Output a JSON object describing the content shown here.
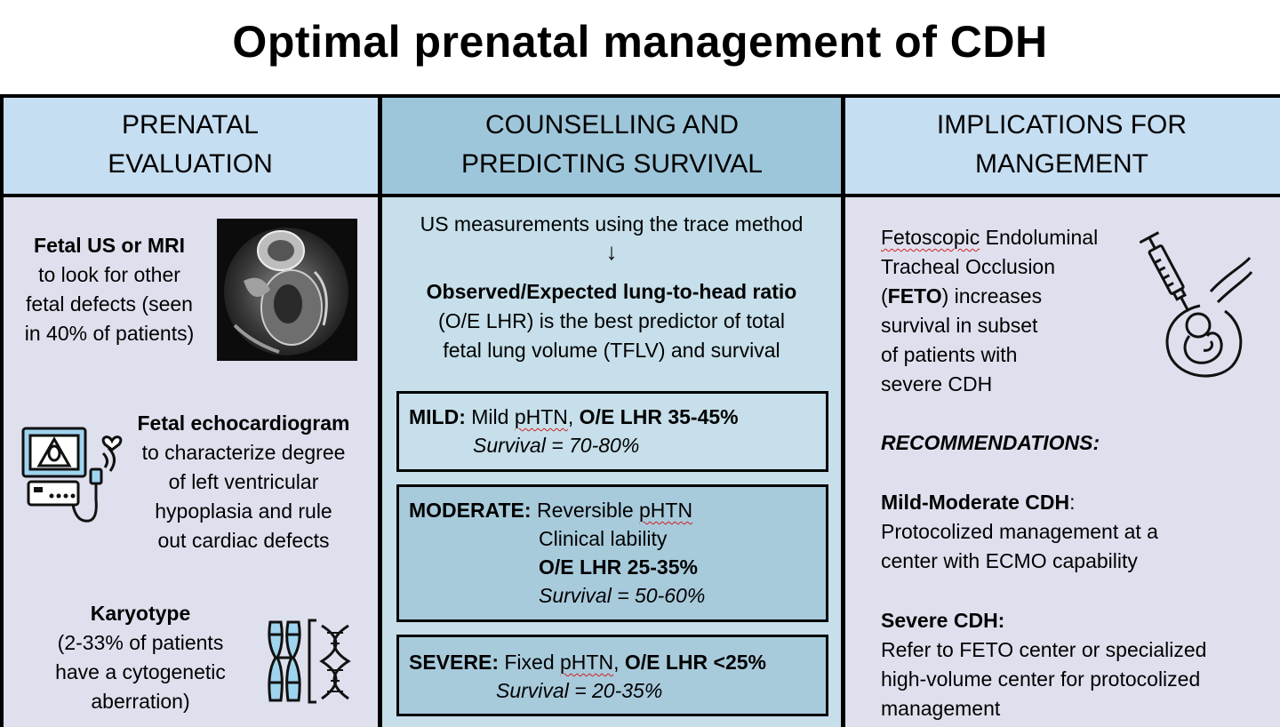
{
  "title": "Optimal prenatal management of CDH",
  "columns": {
    "c1": {
      "header": [
        "PRENATAL",
        "EVALUATION"
      ]
    },
    "c2": {
      "header": [
        "COUNSELLING AND",
        "PREDICTING SURVIVAL"
      ]
    },
    "c3": {
      "header": [
        "IMPLICATIONS FOR",
        "MANGEMENT"
      ]
    }
  },
  "evaluation": {
    "us_mri": {
      "bold": "Fetal US or MRI",
      "lines": [
        "to look for other",
        "fetal defects (seen",
        "in 40% of patients)"
      ]
    },
    "echo": {
      "bold": "Fetal echocardiogram",
      "lines": [
        "to characterize degree",
        "of left ventricular",
        "hypoplasia and rule",
        "out cardiac defects"
      ]
    },
    "karyotype": {
      "bold": "Karyotype",
      "lines": [
        "(2-33% of patients",
        "have a cytogenetic",
        "aberration)"
      ]
    }
  },
  "counselling": {
    "intro": "US measurements using the trace method",
    "arrow": "↓",
    "ratio_bold": "Observed/Expected lung-to-head ratio",
    "ratio_lines": [
      "(O/E LHR) is the best predictor of total",
      "fetal lung volume (TFLV) and survival"
    ],
    "mild": {
      "label": "MILD:",
      "text": "Mild",
      "phtn": "pHTN",
      "comma": ",",
      "ratio": "O/E LHR 35-45%",
      "survival": "Survival = 70-80%"
    },
    "moderate": {
      "label": "MODERATE:",
      "text": "Reversible",
      "phtn": "pHTN",
      "line2": "Clinical lability",
      "ratio": "O/E LHR 25-35%",
      "survival": "Survival = 50-60%"
    },
    "severe": {
      "label": "SEVERE:",
      "text": "Fixed",
      "phtn": "pHTN",
      "comma": ",",
      "ratio": "O/E LHR <25%",
      "survival": "Survival = 20-35%"
    }
  },
  "management": {
    "feto_lines": {
      "l1a": "Fetoscopic",
      "l1b": " Endoluminal",
      "l2": "Tracheal Occlusion",
      "l3a": "(",
      "l3b": "FETO",
      "l3c": ") increases",
      "l4": "survival in subset",
      "l5": "of patients with",
      "l6": "severe CDH"
    },
    "recommendations": "RECOMMENDATIONS:",
    "mild_mod": {
      "bold": "Mild-Moderate CDH",
      "colon": ":",
      "lines": [
        "Protocolized management at a",
        "center with ECMO capability"
      ]
    },
    "severe": {
      "bold": "Severe CDH:",
      "lines": [
        "Refer to FETO center or specialized",
        "high-volume center for protocolized",
        "management"
      ]
    }
  },
  "icons": [
    "mri-image",
    "echocardiogram-icon",
    "chromosome-dna-icon",
    "syringe-fetus-icon"
  ],
  "colors": {
    "header_light": "#c6def2",
    "header_dark": "#9ec6da",
    "body_grey": "#dfe0ee",
    "body_blue": "#c6dfea",
    "box_dark": "#a8cbdc",
    "icon_blue": "#9fd4ef"
  }
}
